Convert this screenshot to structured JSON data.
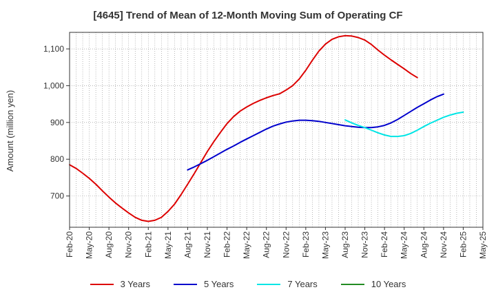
{
  "chart_data": {
    "type": "line",
    "title": "[4645]  Trend of Mean of 12-Month Moving Sum of Operating CF",
    "ylabel": "Amount (million yen)",
    "xlabel": "",
    "ylim": [
      615,
      1145
    ],
    "yticks": [
      700,
      800,
      900,
      1000,
      1100
    ],
    "ytick_labels": [
      "700",
      "800",
      "900",
      "1,000",
      "1,100"
    ],
    "xticks": [
      "Feb-20",
      "May-20",
      "Aug-20",
      "Nov-20",
      "Feb-21",
      "May-21",
      "Aug-21",
      "Nov-21",
      "Feb-22",
      "May-22",
      "Aug-22",
      "Nov-22",
      "Feb-23",
      "May-23",
      "Aug-23",
      "Nov-23",
      "Feb-24",
      "May-24",
      "Aug-24",
      "Nov-24",
      "Feb-25",
      "May-25"
    ],
    "grid": true,
    "legend_position": "bottom",
    "series": [
      {
        "name": "3 Years",
        "color": "#dd0000",
        "start_index": 0,
        "values": [
          785,
          775,
          762,
          748,
          732,
          714,
          697,
          681,
          667,
          654,
          642,
          634,
          631,
          634,
          642,
          658,
          678,
          704,
          732,
          761,
          791,
          821,
          848,
          873,
          897,
          916,
          931,
          942,
          952,
          960,
          967,
          973,
          978,
          988,
          1000,
          1018,
          1042,
          1069,
          1094,
          1113,
          1126,
          1133,
          1136,
          1135,
          1131,
          1124,
          1112,
          1097,
          1083,
          1070,
          1058,
          1046,
          1033,
          1022
        ]
      },
      {
        "name": "5 Years",
        "color": "#0000cc",
        "start_index": 18,
        "values": [
          771,
          779,
          788,
          797,
          807,
          817,
          827,
          836,
          846,
          855,
          864,
          873,
          882,
          890,
          896,
          901,
          904,
          906,
          906,
          905,
          903,
          900,
          897,
          894,
          891,
          889,
          887,
          886,
          886,
          888,
          892,
          899,
          908,
          919,
          930,
          941,
          951,
          961,
          970,
          977
        ]
      },
      {
        "name": "7 Years",
        "color": "#00e5e5",
        "start_index": 42,
        "values": [
          907,
          899,
          892,
          886,
          879,
          872,
          866,
          862,
          862,
          864,
          870,
          879,
          889,
          898,
          906,
          914,
          920,
          925,
          928
        ]
      },
      {
        "name": "10 Years",
        "color": "#228b22",
        "start_index": 0,
        "values": []
      }
    ]
  }
}
